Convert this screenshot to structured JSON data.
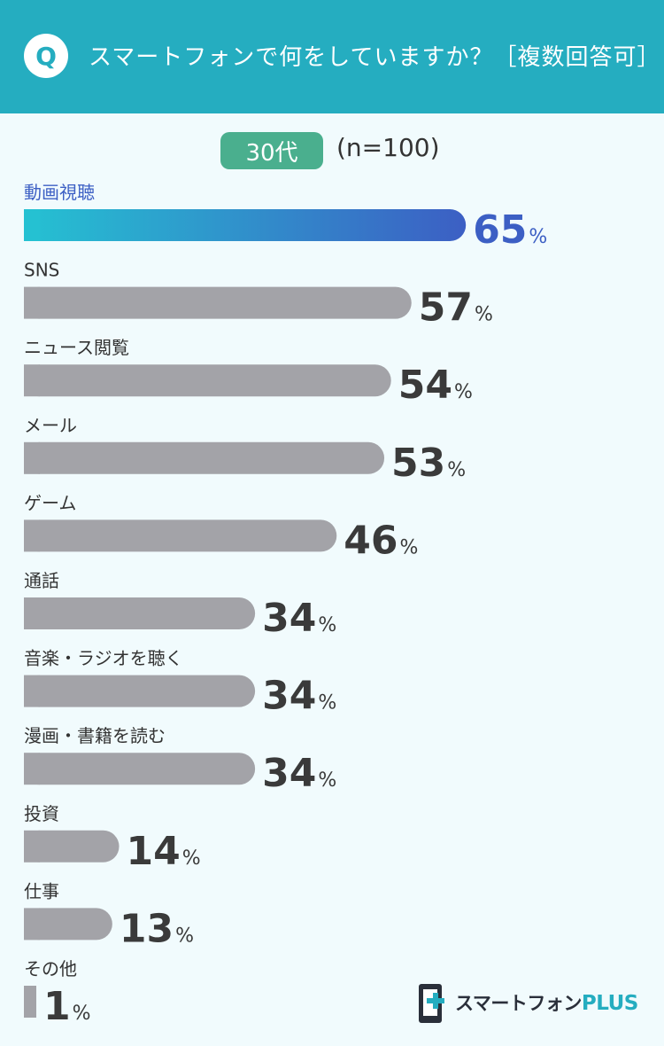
{
  "question": {
    "badge": "Q",
    "text": "スマートフォンで何をしていますか？［複数回答可］"
  },
  "segment": {
    "age_label": "30代",
    "sample_size": "(n=100)"
  },
  "brand": {
    "name_main": "スマートフォン",
    "name_accent": "PLUS"
  },
  "colors": {
    "header": "#25adc0",
    "highlight_start": "#25c1d2",
    "highlight_end": "#3c5fc4",
    "bar_default": "#a3a3a8",
    "pill": "#4aaf8e"
  },
  "chart_data": {
    "type": "bar",
    "orientation": "horizontal",
    "unit": "%",
    "categories": [
      "動画視聴",
      "SNS",
      "ニュース閲覧",
      "メール",
      "ゲーム",
      "通話",
      "音楽・ラジオを聴く",
      "漫画・書籍を読む",
      "投資",
      "仕事",
      "その他"
    ],
    "values": [
      65,
      57,
      54,
      53,
      46,
      34,
      34,
      34,
      14,
      13,
      1
    ],
    "highlight_index": 0,
    "title": "",
    "xlabel": "",
    "ylabel": ""
  }
}
